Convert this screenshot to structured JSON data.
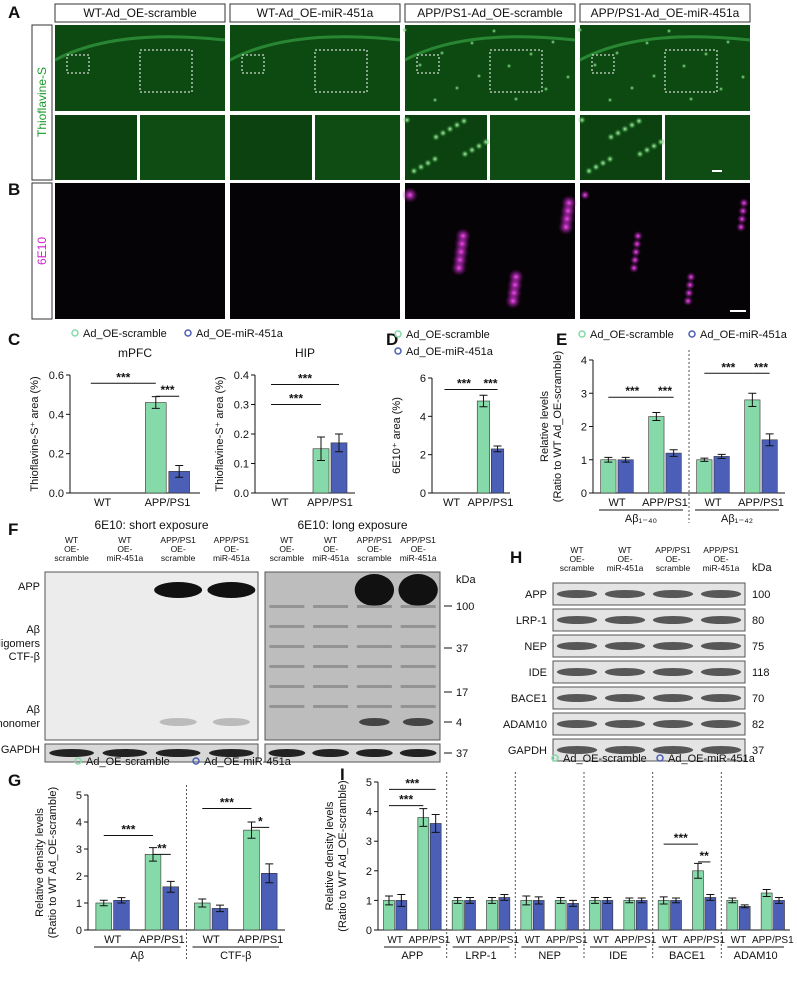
{
  "panel_labels": [
    "A",
    "B",
    "C",
    "D",
    "E",
    "F",
    "G",
    "H",
    "I"
  ],
  "figure_a": {
    "groups": [
      "WT-Ad_OE-scramble",
      "WT-Ad_OE-miR-451a",
      "APP/PS1-Ad_OE-scramble",
      "APP/PS1-Ad_OE-miR-451a"
    ],
    "stain": "Thioflavine-S"
  },
  "figure_b": {
    "stain": "6E10"
  },
  "blot_f": {
    "titles": [
      "6E10:  short exposure",
      "6E10:  long exposure"
    ],
    "lanes": [
      [
        "WT",
        "OE-",
        "scramble"
      ],
      [
        "WT",
        "OE-",
        "miR-451a"
      ],
      [
        "APP/PS1",
        "OE-",
        "scramble"
      ],
      [
        "APP/PS1",
        "OE-",
        "miR-451a"
      ]
    ],
    "bands": [
      [
        "APP"
      ],
      [
        "Aβ",
        "oligomers"
      ],
      [
        "CTF-β"
      ],
      [
        "Aβ",
        "monomer"
      ],
      [
        "GAPDH"
      ]
    ],
    "unit": "kDa",
    "kda": [
      100,
      37,
      17,
      4,
      37
    ]
  },
  "blot_h": {
    "lanes": [
      [
        "WT",
        "OE-",
        "scramble"
      ],
      [
        "WT",
        "OE-",
        "miR-451a"
      ],
      [
        "APP/PS1",
        "OE-",
        "scramble"
      ],
      [
        "APP/PS1",
        "OE-",
        "miR-451a"
      ]
    ],
    "bands": [
      "APP",
      "LRP-1",
      "NEP",
      "IDE",
      "BACE1",
      "ADAM10",
      "GAPDH"
    ],
    "unit": "kDa",
    "kda": [
      100,
      80,
      75,
      118,
      70,
      82,
      37
    ]
  },
  "chart_data": [
    {
      "type": "bar",
      "title": "mPFC",
      "ylabel": [
        "Thioflavine-S⁺ area (%)"
      ],
      "legend": true,
      "categories": [
        "WT",
        "APP/PS1"
      ],
      "series": [
        {
          "name": "Ad_OE-scramble",
          "color": "#86d9a8",
          "values": [
            0,
            0.46
          ],
          "errors": [
            0,
            0.03
          ]
        },
        {
          "name": "Ad_OE-miR-451a",
          "color": "#4a5fb5",
          "values": [
            0,
            0.11
          ],
          "errors": [
            0,
            0.03
          ]
        }
      ],
      "ylim": [
        0,
        0.6
      ],
      "yticks": [
        {
          "value": 0,
          "label": "0.0"
        },
        0.2,
        0.4,
        0.6
      ],
      "annotations": [
        "***",
        "***"
      ]
    },
    {
      "type": "bar",
      "title": "HIP",
      "ylabel": [
        "Thioflavine-S⁺ area (%)"
      ],
      "legend": false,
      "categories": [
        "WT",
        "APP/PS1"
      ],
      "series": [
        {
          "name": "Ad_OE-scramble",
          "color": "#86d9a8",
          "values": [
            0,
            0.15
          ],
          "errors": [
            0,
            0.04
          ]
        },
        {
          "name": "Ad_OE-miR-451a",
          "color": "#4a5fb5",
          "values": [
            0,
            0.17
          ],
          "errors": [
            0,
            0.03
          ]
        }
      ],
      "ylim": [
        0,
        0.4
      ],
      "yticks": [
        {
          "value": 0,
          "label": "0.0"
        },
        0.1,
        0.2,
        0.3,
        0.4
      ],
      "annotations": [
        "***",
        "***"
      ]
    },
    {
      "type": "bar",
      "ylabel": [
        "6E10⁺ area (%)"
      ],
      "legend": true,
      "categories": [
        "WT",
        "APP/PS1"
      ],
      "series": [
        {
          "name": "Ad_OE-scramble",
          "color": "#86d9a8",
          "values": [
            0,
            4.8
          ],
          "errors": [
            0,
            0.3
          ]
        },
        {
          "name": "Ad_OE-miR-451a",
          "color": "#4a5fb5",
          "values": [
            0,
            2.3
          ],
          "errors": [
            0,
            0.15
          ]
        }
      ],
      "ylim": [
        0,
        6
      ],
      "yticks": [
        0,
        2,
        4,
        6
      ],
      "annotations": [
        "***",
        "***"
      ]
    },
    {
      "type": "bar",
      "ylabel": [
        "Relative levels",
        "(Ratio to WT Ad_OE-scramble)"
      ],
      "legend": true,
      "categories": [
        "WT",
        "APP/PS1",
        "WT",
        "APP/PS1"
      ],
      "groups": [
        "Aβ₁₋₄₀",
        "Aβ₁₋₄₂"
      ],
      "series": [
        {
          "name": "Ad_OE-scramble",
          "color": "#86d9a8",
          "values": [
            1.0,
            2.3,
            1.0,
            2.8
          ],
          "errors": [
            0.07,
            0.12,
            0.05,
            0.2
          ]
        },
        {
          "name": "Ad_OE-miR-451a",
          "color": "#4a5fb5",
          "values": [
            1.0,
            1.2,
            1.1,
            1.6
          ],
          "errors": [
            0.07,
            0.1,
            0.06,
            0.18
          ]
        }
      ],
      "ylim": [
        0,
        4
      ],
      "yticks": [
        0,
        1,
        2,
        3,
        4
      ],
      "annotations": [
        "***",
        "***",
        "***",
        "***"
      ]
    },
    {
      "type": "bar",
      "ylabel": [
        "Relative density levels",
        "(Ratio to WT Ad_OE-scramble)"
      ],
      "legend": true,
      "categories": [
        "WT",
        "APP/PS1",
        "WT",
        "APP/PS1"
      ],
      "groups": [
        "Aβ",
        "CTF-β"
      ],
      "series": [
        {
          "name": "Ad_OE-scramble",
          "color": "#86d9a8",
          "values": [
            1.0,
            2.8,
            1.0,
            3.7
          ],
          "errors": [
            0.1,
            0.25,
            0.15,
            0.3
          ]
        },
        {
          "name": "Ad_OE-miR-451a",
          "color": "#4a5fb5",
          "values": [
            1.1,
            1.6,
            0.8,
            2.1
          ],
          "errors": [
            0.1,
            0.2,
            0.12,
            0.35
          ]
        }
      ],
      "ylim": [
        0,
        5
      ],
      "yticks": [
        0,
        1,
        2,
        3,
        4,
        5
      ],
      "annotations": [
        "***",
        "**",
        "***",
        "*"
      ]
    },
    {
      "type": "bar",
      "ylabel": [
        "Relative density levels",
        "(Ratio to WT Ad_OE-scramble)"
      ],
      "legend": true,
      "categories": [
        "WT",
        "APP/PS1",
        "WT",
        "APP/PS1",
        "WT",
        "APP/PS1",
        "WT",
        "APP/PS1",
        "WT",
        "APP/PS1",
        "WT",
        "APP/PS1"
      ],
      "groups": [
        "APP",
        "LRP-1",
        "NEP",
        "IDE",
        "BACE1",
        "ADAM10"
      ],
      "series": [
        {
          "name": "Ad_OE-scramble",
          "color": "#86d9a8",
          "values": [
            1.0,
            3.8,
            1.0,
            1.0,
            1.0,
            1.0,
            1.0,
            1.0,
            1.0,
            2.0,
            1.0,
            1.25
          ],
          "errors": [
            0.15,
            0.3,
            0.1,
            0.1,
            0.15,
            0.1,
            0.1,
            0.08,
            0.12,
            0.25,
            0.08,
            0.12
          ]
        },
        {
          "name": "Ad_OE-miR-451a",
          "color": "#4a5fb5",
          "values": [
            1.0,
            3.6,
            1.0,
            1.1,
            1.0,
            0.9,
            1.0,
            1.0,
            1.0,
            1.1,
            0.8,
            1.0
          ],
          "errors": [
            0.2,
            0.3,
            0.1,
            0.1,
            0.12,
            0.1,
            0.1,
            0.08,
            0.08,
            0.1,
            0.05,
            0.1
          ]
        }
      ],
      "ylim": [
        0,
        5
      ],
      "yticks": [
        0,
        1,
        2,
        3,
        4,
        5
      ],
      "annotations": [
        "***",
        "***",
        "***",
        "**"
      ]
    }
  ]
}
